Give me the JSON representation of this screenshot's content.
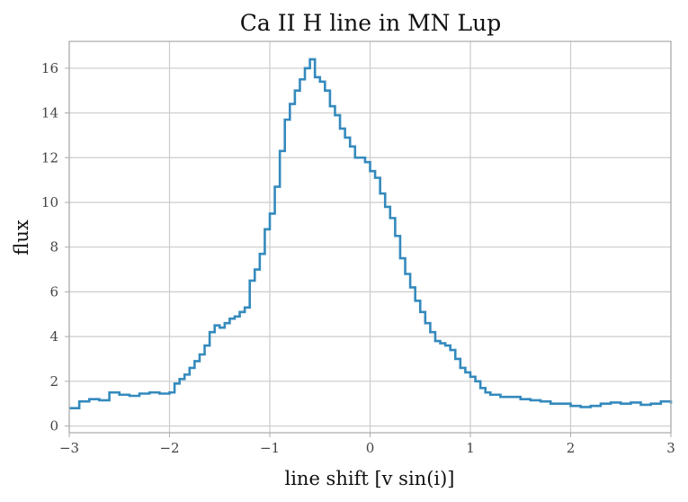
{
  "chart_data": {
    "type": "line",
    "title": "Ca II H line in MN Lup",
    "xlabel": "line shift [v sin(i)]",
    "ylabel": "flux",
    "xlim": [
      -3,
      3
    ],
    "ylim": [
      -0.3,
      17.2
    ],
    "grid": true,
    "line_color": "#348abd",
    "xticks": [
      -3,
      -2,
      -1,
      0,
      1,
      2,
      3
    ],
    "xtick_labels": [
      "−3",
      "−2",
      "−1",
      "0",
      "1",
      "2",
      "3"
    ],
    "yticks": [
      0,
      2,
      4,
      6,
      8,
      10,
      12,
      14,
      16
    ],
    "ytick_labels": [
      "0",
      "2",
      "4",
      "6",
      "8",
      "10",
      "12",
      "14",
      "16"
    ],
    "series": [
      {
        "drawstyle": "steps",
        "x": [
          -3.0,
          -2.9,
          -2.8,
          -2.7,
          -2.6,
          -2.5,
          -2.4,
          -2.3,
          -2.2,
          -2.1,
          -2.0,
          -1.95,
          -1.9,
          -1.85,
          -1.8,
          -1.75,
          -1.7,
          -1.65,
          -1.6,
          -1.55,
          -1.5,
          -1.45,
          -1.4,
          -1.35,
          -1.3,
          -1.25,
          -1.2,
          -1.15,
          -1.1,
          -1.05,
          -1.0,
          -0.95,
          -0.9,
          -0.85,
          -0.8,
          -0.75,
          -0.7,
          -0.65,
          -0.6,
          -0.55,
          -0.5,
          -0.45,
          -0.4,
          -0.35,
          -0.3,
          -0.25,
          -0.2,
          -0.15,
          -0.1,
          -0.05,
          0.0,
          0.05,
          0.1,
          0.15,
          0.2,
          0.25,
          0.3,
          0.35,
          0.4,
          0.45,
          0.5,
          0.55,
          0.6,
          0.65,
          0.7,
          0.75,
          0.8,
          0.85,
          0.9,
          0.95,
          1.0,
          1.05,
          1.1,
          1.15,
          1.2,
          1.3,
          1.4,
          1.5,
          1.6,
          1.7,
          1.8,
          1.9,
          2.0,
          2.1,
          2.2,
          2.3,
          2.4,
          2.5,
          2.6,
          2.7,
          2.8,
          2.9,
          3.0
        ],
        "y": [
          0.8,
          1.1,
          1.2,
          1.15,
          1.5,
          1.4,
          1.35,
          1.45,
          1.5,
          1.45,
          1.5,
          1.9,
          2.1,
          2.3,
          2.6,
          2.9,
          3.2,
          3.6,
          4.2,
          4.5,
          4.4,
          4.6,
          4.8,
          4.9,
          5.1,
          5.3,
          6.5,
          7.0,
          7.7,
          8.8,
          9.5,
          10.7,
          12.3,
          13.7,
          14.4,
          15.0,
          15.5,
          16.0,
          16.4,
          15.6,
          15.4,
          15.0,
          14.3,
          13.9,
          13.3,
          12.9,
          12.5,
          12.0,
          12.0,
          11.8,
          11.4,
          11.1,
          10.4,
          9.8,
          9.3,
          8.5,
          7.5,
          6.8,
          6.2,
          5.6,
          5.1,
          4.6,
          4.2,
          3.8,
          3.7,
          3.6,
          3.4,
          3.0,
          2.6,
          2.4,
          2.2,
          2.0,
          1.7,
          1.5,
          1.4,
          1.3,
          1.3,
          1.2,
          1.15,
          1.1,
          1.0,
          1.0,
          0.9,
          0.85,
          0.9,
          1.0,
          1.05,
          1.0,
          1.05,
          0.95,
          1.0,
          1.1,
          1.0
        ]
      }
    ]
  }
}
